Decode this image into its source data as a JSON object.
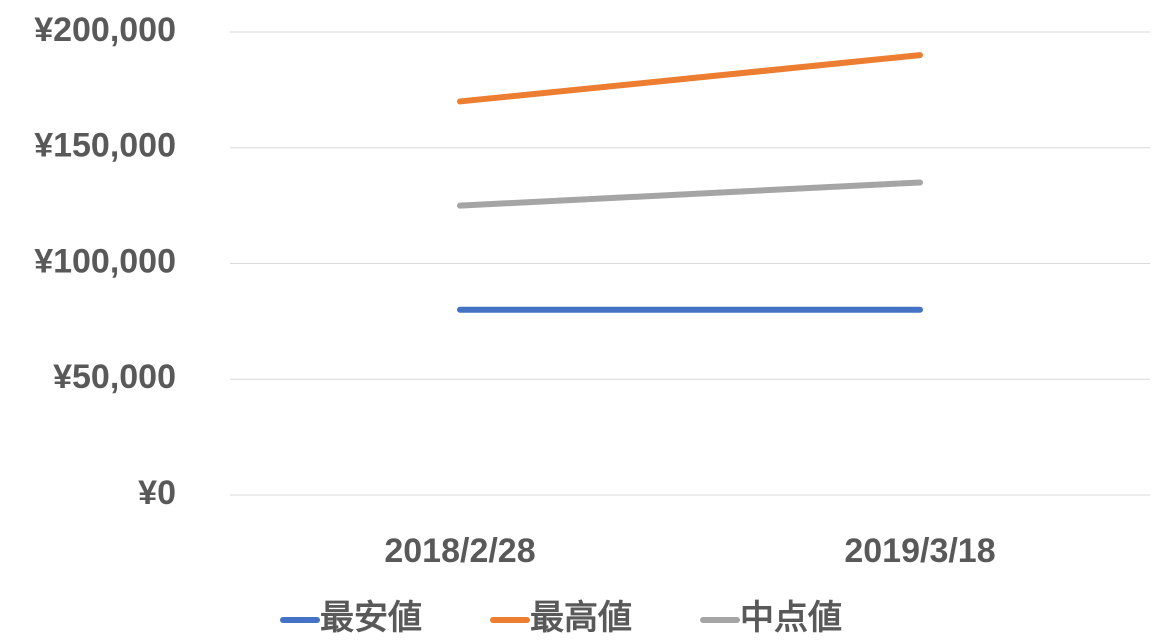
{
  "chart_data": {
    "type": "line",
    "categories": [
      "2018/2/28",
      "2019/3/18"
    ],
    "series": [
      {
        "name": "最安値",
        "color": "#4472c4",
        "values": [
          80000,
          80000
        ]
      },
      {
        "name": "最高値",
        "color": "#ed7d31",
        "values": [
          170000,
          190000
        ]
      },
      {
        "name": "中点値",
        "color": "#a5a5a5",
        "values": [
          125000,
          135000
        ]
      }
    ],
    "ylim": [
      0,
      200000
    ],
    "yticks": [
      {
        "value": 0,
        "label": "¥0"
      },
      {
        "value": 50000,
        "label": "¥50,000"
      },
      {
        "value": 100000,
        "label": "¥100,000"
      },
      {
        "value": 150000,
        "label": "¥150,000"
      },
      {
        "value": 200000,
        "label": "¥200,000"
      }
    ],
    "grid": true,
    "legend": "bottom"
  }
}
